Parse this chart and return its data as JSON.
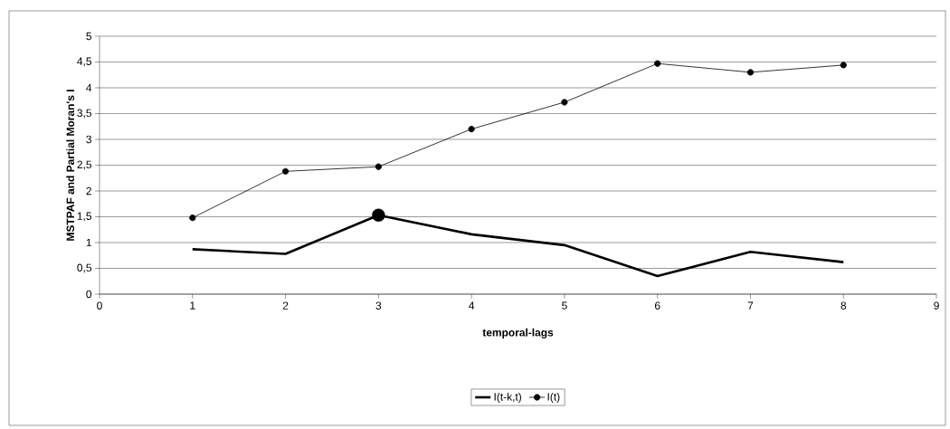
{
  "chart_data": {
    "type": "line",
    "xlabel": "temporal-lags",
    "ylabel": "MSTPAF and Partial Moran's I",
    "x": [
      1,
      2,
      3,
      4,
      5,
      6,
      7,
      8
    ],
    "xlim": [
      0,
      9
    ],
    "xticks": [
      0,
      1,
      2,
      3,
      4,
      5,
      6,
      7,
      8,
      9
    ],
    "ylim": [
      0,
      5
    ],
    "yticks": [
      0,
      {
        "value": 0.5,
        "label": "0,5"
      },
      1,
      {
        "value": 1.5,
        "label": "1,5"
      },
      2,
      {
        "value": 2.5,
        "label": "2,5"
      },
      3,
      {
        "value": 3.5,
        "label": "3,5"
      },
      4,
      {
        "value": 4.5,
        "label": "4,5"
      },
      5
    ],
    "grid": "y",
    "legend": "bottom",
    "series": [
      {
        "name": "I(t-k,t)",
        "color": "#000000",
        "marker": "none",
        "values": [
          0.87,
          0.78,
          1.53,
          1.16,
          0.95,
          0.35,
          0.82,
          0.62
        ]
      },
      {
        "name": "I(t)",
        "color": "#000000",
        "marker": "circle",
        "values": [
          1.48,
          2.38,
          2.47,
          3.2,
          3.72,
          4.47,
          4.3,
          4.44
        ]
      },
      {
        "type": "scatter",
        "color": "#000000",
        "marker": "circle",
        "x": [
          3
        ],
        "values": [
          1.53
        ]
      }
    ]
  }
}
